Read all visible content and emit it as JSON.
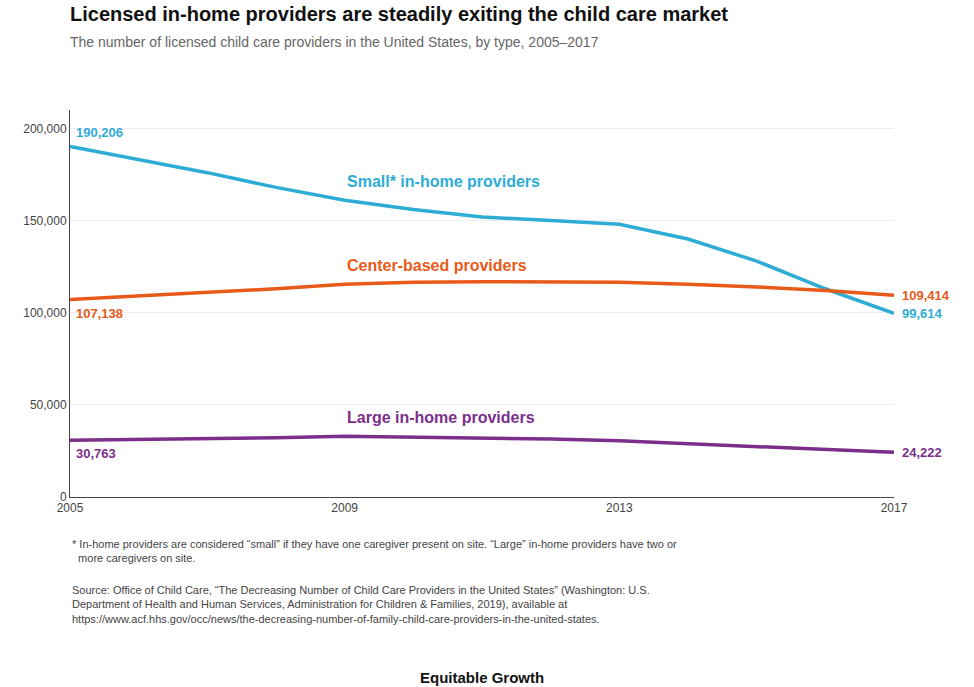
{
  "chart_data": {
    "type": "line",
    "title": "Licensed in-home providers are steadily exiting the child care market",
    "subtitle": "The number of licensed child care providers in the United States, by type, 2005–2017",
    "x": [
      2005,
      2006,
      2007,
      2008,
      2009,
      2010,
      2011,
      2012,
      2013,
      2014,
      2015,
      2016,
      2017
    ],
    "xlim": [
      2005,
      2017
    ],
    "xticks": [
      2005,
      2009,
      2013,
      2017
    ],
    "ylim": [
      0,
      210000
    ],
    "yticks": [
      0,
      {
        "value": 50000,
        "label": "50,000"
      },
      {
        "value": 100000,
        "label": "100,000"
      },
      {
        "value": 150000,
        "label": "150,000"
      },
      {
        "value": 200000,
        "label": "200,000"
      }
    ],
    "grid": true,
    "series": [
      {
        "name": "Small* in-home providers",
        "color": "#2dacd6",
        "values": [
          190206,
          183000,
          176000,
          168000,
          161000,
          156000,
          152000,
          150000,
          148000,
          140000,
          128000,
          113000,
          99614
        ],
        "value_labels": [
          "190,206",
          null,
          null,
          null,
          null,
          null,
          null,
          null,
          null,
          null,
          null,
          null,
          "99,614"
        ]
      },
      {
        "name": "Center-based providers",
        "color": "#e85a1a",
        "values": [
          107138,
          109000,
          111000,
          113000,
          115500,
          116500,
          116800,
          116800,
          116500,
          115500,
          114000,
          112000,
          109414
        ],
        "value_labels": [
          "107,138",
          null,
          null,
          null,
          null,
          null,
          null,
          null,
          null,
          null,
          null,
          null,
          "109,414"
        ]
      },
      {
        "name": "Large in-home providers",
        "color": "#7b2f8b",
        "values": [
          30763,
          31200,
          31600,
          32200,
          33000,
          32500,
          32000,
          31500,
          30500,
          29000,
          27500,
          25800,
          24222
        ],
        "value_labels": [
          "30,763",
          null,
          null,
          null,
          null,
          null,
          null,
          null,
          null,
          null,
          null,
          null,
          "24,222"
        ]
      }
    ],
    "annotations": [
      "* In-home providers are considered “small” if they have one caregiver present on site. “Large” in-home providers have two or\n  more caregivers on site.",
      "Source: Office of Child Care, “The Decreasing Number of Child Care Providers in the United States” (Washington: U.S.\nDepartment of Health and Human Services, Administration for Children & Families, 2019), available at\nhttps://www.acf.hhs.gov/occ/news/the-decreasing-number-of-family-child-care-providers-in-the-united-states.",
      "Equitable Growth"
    ]
  }
}
